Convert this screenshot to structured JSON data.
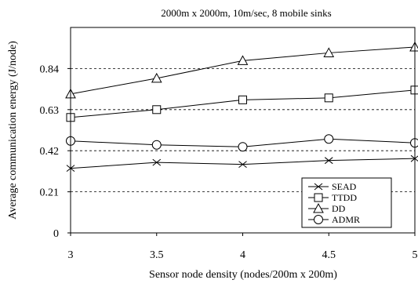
{
  "chart_data": {
    "type": "line",
    "title": "2000m x 2000m, 10m/sec, 8 mobile sinks",
    "xlabel": "Sensor node density (nodes/200m x 200m)",
    "ylabel": "Average communication energy (J/node)",
    "xlim": [
      3,
      5
    ],
    "ylim": [
      0,
      1.05
    ],
    "x_ticks": [
      "3",
      "3.5",
      "4",
      "4.5",
      "5"
    ],
    "x_tick_values": [
      3,
      3.5,
      4,
      4.5,
      5
    ],
    "y_ticks": [
      "0",
      "0.21",
      "0.42",
      "0.63",
      "0.84"
    ],
    "y_tick_values": [
      0,
      0.21,
      0.42,
      0.63,
      0.84
    ],
    "grid": "horizontal dashed",
    "legend_position": "bottom-right",
    "x": [
      3,
      3.5,
      4,
      4.5,
      5
    ],
    "series": [
      {
        "name": "SEAD",
        "marker": "x",
        "values": [
          0.33,
          0.36,
          0.35,
          0.37,
          0.38
        ]
      },
      {
        "name": "TTDD",
        "marker": "square",
        "values": [
          0.59,
          0.63,
          0.68,
          0.69,
          0.73
        ]
      },
      {
        "name": "DD",
        "marker": "triangle",
        "values": [
          0.71,
          0.79,
          0.88,
          0.92,
          0.95
        ]
      },
      {
        "name": "ADMR",
        "marker": "circle",
        "values": [
          0.47,
          0.45,
          0.44,
          0.48,
          0.46
        ]
      }
    ]
  }
}
